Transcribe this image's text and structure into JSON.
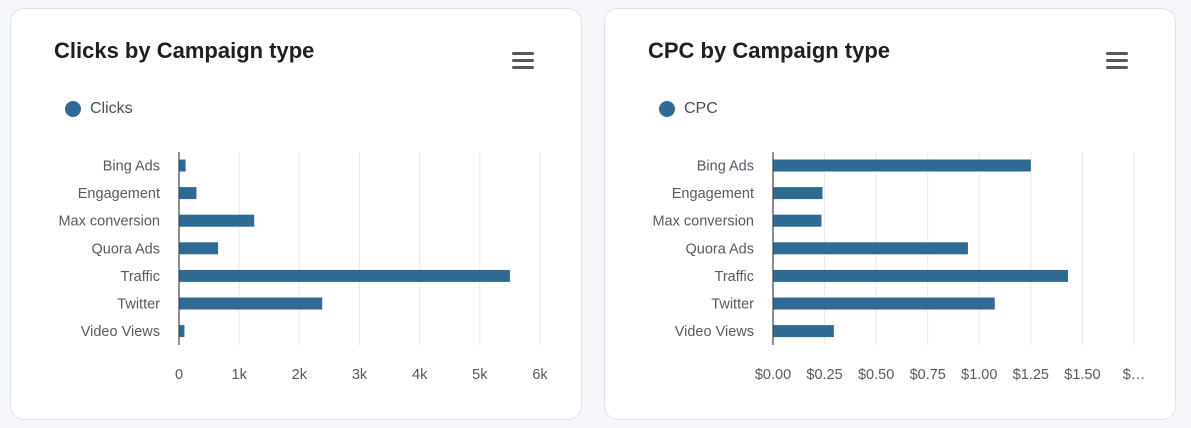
{
  "colors": {
    "bar": "#2e6b94",
    "grid": "#e6e9ee",
    "axis": "#444444"
  },
  "menu_icon": "hamburger-menu-icon",
  "chart_data": [
    {
      "type": "bar",
      "orientation": "horizontal",
      "title": "Clicks by Campaign type",
      "legend": {
        "entries": [
          "Clicks"
        ],
        "placement": "top-left"
      },
      "categories": [
        "Bing Ads",
        "Engagement",
        "Max conversion",
        "Quora Ads",
        "Traffic",
        "Twitter",
        "Video Views"
      ],
      "series": [
        {
          "name": "Clicks",
          "values": [
            110,
            290,
            1250,
            650,
            5500,
            2380,
            90
          ]
        }
      ],
      "xlim": [
        0,
        6000
      ],
      "xticks": [
        0,
        1000,
        2000,
        3000,
        4000,
        5000,
        6000
      ],
      "xtick_labels": [
        "0",
        "1k",
        "2k",
        "3k",
        "4k",
        "5k",
        "6k"
      ],
      "grid": true
    },
    {
      "type": "bar",
      "orientation": "horizontal",
      "title": "CPC by Campaign type",
      "legend": {
        "entries": [
          "CPC"
        ],
        "placement": "top-left"
      },
      "categories": [
        "Bing Ads",
        "Engagement",
        "Max conversion",
        "Quora Ads",
        "Traffic",
        "Twitter",
        "Video Views"
      ],
      "series": [
        {
          "name": "CPC",
          "values": [
            1.25,
            0.24,
            0.235,
            0.945,
            1.43,
            1.075,
            0.295
          ]
        }
      ],
      "xlim": [
        0,
        1.75
      ],
      "xticks": [
        0,
        0.25,
        0.5,
        0.75,
        1.0,
        1.25,
        1.5,
        1.75
      ],
      "xtick_labels": [
        "$0.00",
        "$0.25",
        "$0.50",
        "$0.75",
        "$1.00",
        "$1.25",
        "$1.50",
        "$…"
      ],
      "grid": true
    }
  ]
}
